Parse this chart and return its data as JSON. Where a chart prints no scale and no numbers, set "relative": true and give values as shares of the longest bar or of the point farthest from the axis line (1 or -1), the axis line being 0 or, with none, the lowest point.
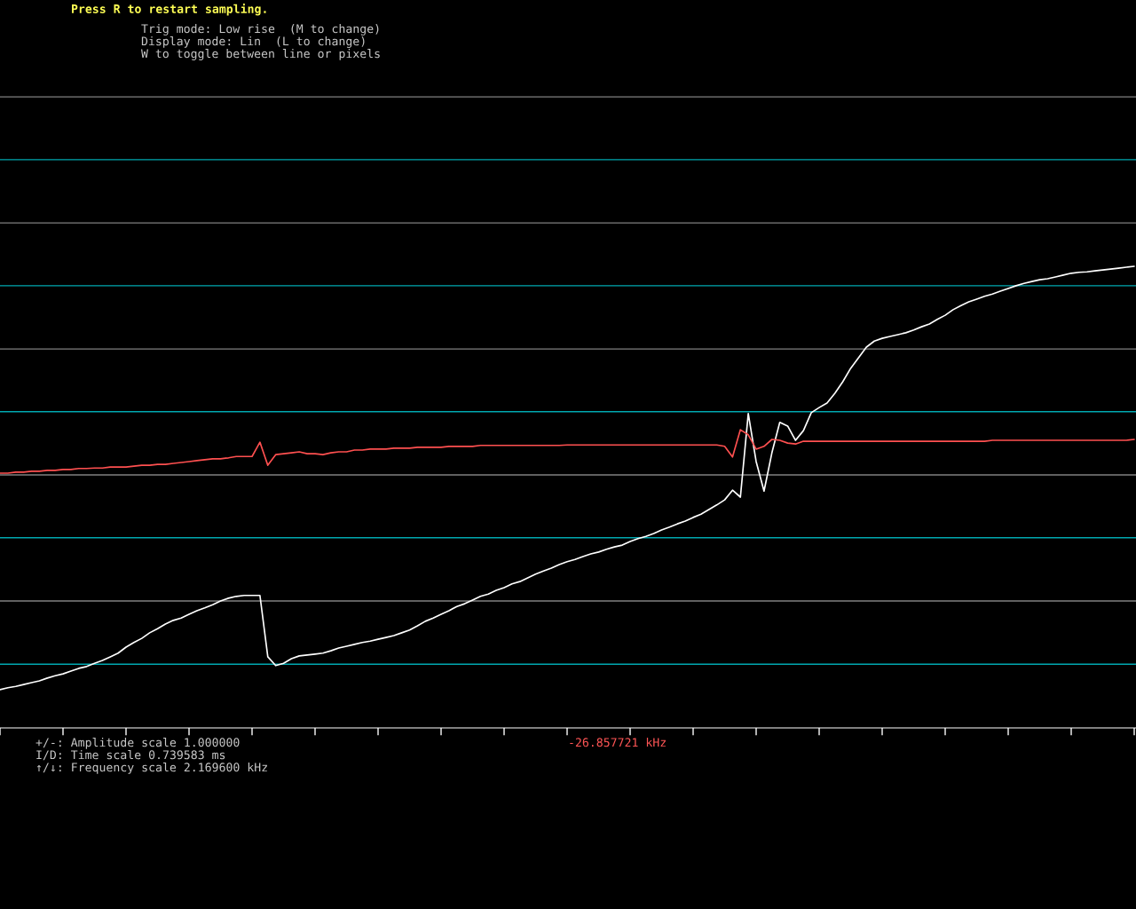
{
  "chart_data": {
    "type": "line",
    "relative": true,
    "categories": [
      null,
      null,
      null,
      null,
      null,
      null,
      null,
      null,
      null,
      null,
      null,
      null,
      null,
      null,
      null,
      null,
      null,
      null,
      null,
      null,
      null,
      null,
      null,
      null,
      null,
      null,
      null,
      null,
      null,
      null,
      null,
      null,
      null,
      null,
      null,
      null,
      null,
      null,
      null,
      null,
      null,
      null,
      null,
      null,
      null,
      null,
      null,
      null,
      null,
      null,
      null,
      null,
      null,
      null,
      null,
      null,
      null,
      null,
      null,
      null,
      null,
      null,
      null,
      null,
      null,
      null,
      null,
      null,
      null,
      null,
      null,
      null,
      null,
      null,
      null,
      null,
      null,
      null,
      null,
      null,
      null,
      null,
      null,
      null,
      null,
      null,
      null,
      null,
      null,
      null,
      null,
      null,
      null,
      null,
      null,
      null,
      null,
      null,
      null,
      null,
      null,
      null,
      null,
      null,
      null,
      null,
      null,
      null,
      null,
      null,
      null,
      null,
      null,
      null,
      null,
      null,
      null,
      null,
      null,
      null,
      null,
      null,
      null,
      null,
      null,
      null,
      null,
      null,
      null,
      null,
      null,
      null,
      null,
      null,
      null,
      null,
      null,
      null,
      null,
      null,
      null,
      null,
      null,
      null,
      null
    ],
    "series": [
      {
        "color": "#ffffff",
        "values": [
          0.083,
          0.087,
          0.09,
          0.094,
          0.098,
          0.102,
          0.108,
          0.113,
          0.117,
          0.123,
          0.129,
          0.133,
          0.14,
          0.146,
          0.154,
          0.162,
          0.175,
          0.185,
          0.194,
          0.206,
          0.215,
          0.225,
          0.233,
          0.238,
          0.246,
          0.254,
          0.26,
          0.267,
          0.275,
          0.281,
          0.285,
          0.287,
          0.287,
          0.287,
          0.154,
          0.135,
          0.14,
          0.15,
          0.156,
          0.158,
          0.16,
          0.162,
          0.167,
          0.173,
          0.177,
          0.181,
          0.185,
          0.188,
          0.192,
          0.196,
          0.2,
          0.206,
          0.212,
          0.221,
          0.231,
          0.238,
          0.246,
          0.254,
          0.263,
          0.269,
          0.277,
          0.285,
          0.29,
          0.298,
          0.304,
          0.312,
          0.317,
          0.325,
          0.333,
          0.34,
          0.346,
          0.354,
          0.36,
          0.365,
          0.371,
          0.377,
          0.381,
          0.387,
          0.392,
          0.396,
          0.404,
          0.41,
          0.415,
          0.421,
          0.429,
          0.435,
          0.442,
          0.448,
          0.456,
          0.463,
          0.473,
          0.483,
          0.494,
          0.515,
          0.5,
          0.681,
          0.577,
          0.513,
          0.596,
          0.662,
          0.654,
          0.623,
          0.644,
          0.683,
          0.694,
          0.704,
          0.725,
          0.75,
          0.779,
          0.802,
          0.825,
          0.838,
          0.844,
          0.848,
          0.852,
          0.856,
          0.862,
          0.869,
          0.875,
          0.885,
          0.894,
          0.906,
          0.915,
          0.923,
          0.929,
          0.935,
          0.94,
          0.946,
          0.952,
          0.958,
          0.963,
          0.967,
          0.971,
          0.973,
          0.977,
          0.981,
          0.985,
          0.987,
          0.988,
          0.99,
          0.992,
          0.994,
          0.996,
          0.998,
          1.0
        ]
      },
      {
        "color": "#ff5050",
        "values": [
          0.552,
          0.552,
          0.554,
          0.554,
          0.556,
          0.556,
          0.558,
          0.558,
          0.56,
          0.56,
          0.562,
          0.562,
          0.563,
          0.563,
          0.565,
          0.565,
          0.565,
          0.567,
          0.569,
          0.569,
          0.571,
          0.571,
          0.573,
          0.575,
          0.577,
          0.579,
          0.581,
          0.583,
          0.583,
          0.585,
          0.588,
          0.588,
          0.588,
          0.619,
          0.569,
          0.592,
          0.594,
          0.596,
          0.598,
          0.594,
          0.594,
          0.592,
          0.596,
          0.598,
          0.598,
          0.602,
          0.602,
          0.604,
          0.604,
          0.604,
          0.606,
          0.606,
          0.606,
          0.608,
          0.608,
          0.608,
          0.608,
          0.61,
          0.61,
          0.61,
          0.61,
          0.612,
          0.612,
          0.612,
          0.612,
          0.612,
          0.612,
          0.612,
          0.612,
          0.612,
          0.612,
          0.612,
          0.613,
          0.613,
          0.613,
          0.613,
          0.613,
          0.613,
          0.613,
          0.613,
          0.613,
          0.613,
          0.613,
          0.613,
          0.613,
          0.613,
          0.613,
          0.613,
          0.613,
          0.613,
          0.613,
          0.613,
          0.61,
          0.587,
          0.646,
          0.635,
          0.604,
          0.61,
          0.625,
          0.623,
          0.617,
          0.615,
          0.621,
          0.621,
          0.621,
          0.621,
          0.621,
          0.621,
          0.621,
          0.621,
          0.621,
          0.621,
          0.621,
          0.621,
          0.621,
          0.621,
          0.621,
          0.621,
          0.621,
          0.621,
          0.621,
          0.621,
          0.621,
          0.621,
          0.621,
          0.621,
          0.623,
          0.623,
          0.623,
          0.623,
          0.623,
          0.623,
          0.623,
          0.623,
          0.623,
          0.623,
          0.623,
          0.623,
          0.623,
          0.623,
          0.623,
          0.623,
          0.623,
          0.623,
          0.625
        ]
      }
    ],
    "ref_lines": [
      {
        "axis": "y",
        "value": 1.367,
        "color": "#808080"
      },
      {
        "axis": "y",
        "value": 1.231,
        "color": "#00a8b0"
      },
      {
        "axis": "y",
        "value": 1.094,
        "color": "#808080"
      },
      {
        "axis": "y",
        "value": 0.958,
        "color": "#00a8b0"
      },
      {
        "axis": "y",
        "value": 0.821,
        "color": "#808080"
      },
      {
        "axis": "y",
        "value": 0.685,
        "color": "#00a8b0"
      },
      {
        "axis": "y",
        "value": 0.548,
        "color": "#808080"
      },
      {
        "axis": "y",
        "value": 0.412,
        "color": "#00a8b0"
      },
      {
        "axis": "y",
        "value": 0.275,
        "color": "#808080"
      },
      {
        "axis": "y",
        "value": 0.138,
        "color": "#00a8b0"
      }
    ],
    "annotations": [
      "Press R to restart sampling.",
      "Trig mode: Low rise  (M to change)",
      "Display mode: Lin  (L to change)",
      "W to toggle between line or pixels",
      "+/-: Amplitude scale 1.000000",
      "I/D: Time scale 0.739583 ms",
      "↑/↓: Frequency scale 2.169600 kHz",
      "-26.857721 kHz"
    ]
  }
}
